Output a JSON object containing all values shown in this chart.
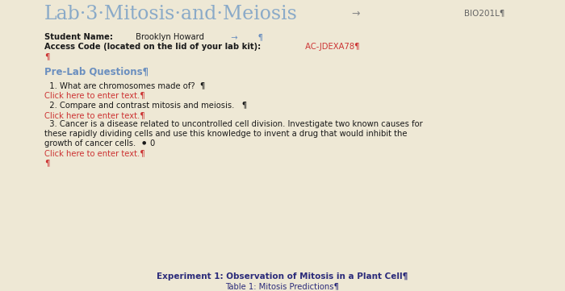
{
  "bg_color": "#eee8d5",
  "title": "Lab·3·Mitosis·and·Meiosis",
  "title_color": "#8aaac8",
  "title_fontsize": 17,
  "arrow": "→",
  "header_right": "BIO201L¶",
  "header_right_color": "#666666",
  "student_label": "Student Name:",
  "student_name": " Brooklyn Howard",
  "student_arrow": "  →        ¶",
  "access_label": "Access Code (located on the lid of your lab kit):",
  "access_code": " AC-JDEXA78¶",
  "access_code_color": "#cc3333",
  "pilcrow1": "¶",
  "section_title": "Pre-Lab Questions¶",
  "section_title_color": "#6b8fbf",
  "q1": "  1. What are chromosomes made of?  ¶",
  "q1_click": "Click here to enter text.¶",
  "q2": "  2. Compare and contrast mitosis and meiosis.   ¶",
  "q2_click": "Click here to enter text.¶",
  "q3_line1": "  3. Cancer is a disease related to uncontrolled cell division. Investigate two known causes for",
  "q3_line2": "these rapidly dividing cells and use this knowledge to invent a drug that would inhibit the",
  "q3_line3": "growth of cancer cells.  ⚫ 0",
  "q3_click": "Click here to enter text.¶",
  "click_color": "#cc3333",
  "pilcrow2": "¶",
  "exp_title": "Experiment 1: Observation of Mitosis in a Plant Cell¶",
  "exp_title_color": "#2b2b7a",
  "table_title": "Table 1: Mitosis Predictions¶",
  "table_title_color": "#2b2b7a",
  "body_color": "#1a1a1a",
  "body_fontsize": 7.2,
  "bold_fontsize": 7.2
}
